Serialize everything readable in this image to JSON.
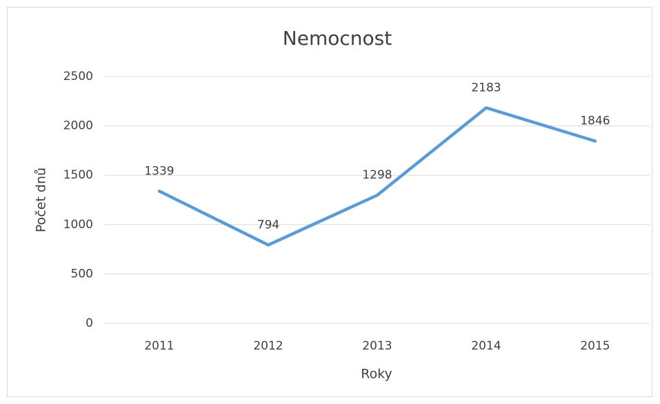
{
  "chart_data": {
    "type": "line",
    "title": "Nemocnost",
    "x_label": "Roky",
    "y_label": "Počet dnů",
    "categories": [
      "2011",
      "2012",
      "2013",
      "2014",
      "2015"
    ],
    "series": [
      {
        "name": "Počet dnů",
        "color": "#5b9bd5",
        "values": [
          1339,
          794,
          1298,
          2183,
          1846
        ]
      }
    ],
    "ylim": [
      0,
      2500
    ],
    "yticks": [
      0,
      500,
      1000,
      1500,
      2000,
      2500
    ],
    "grid": true,
    "data_labels": true
  }
}
